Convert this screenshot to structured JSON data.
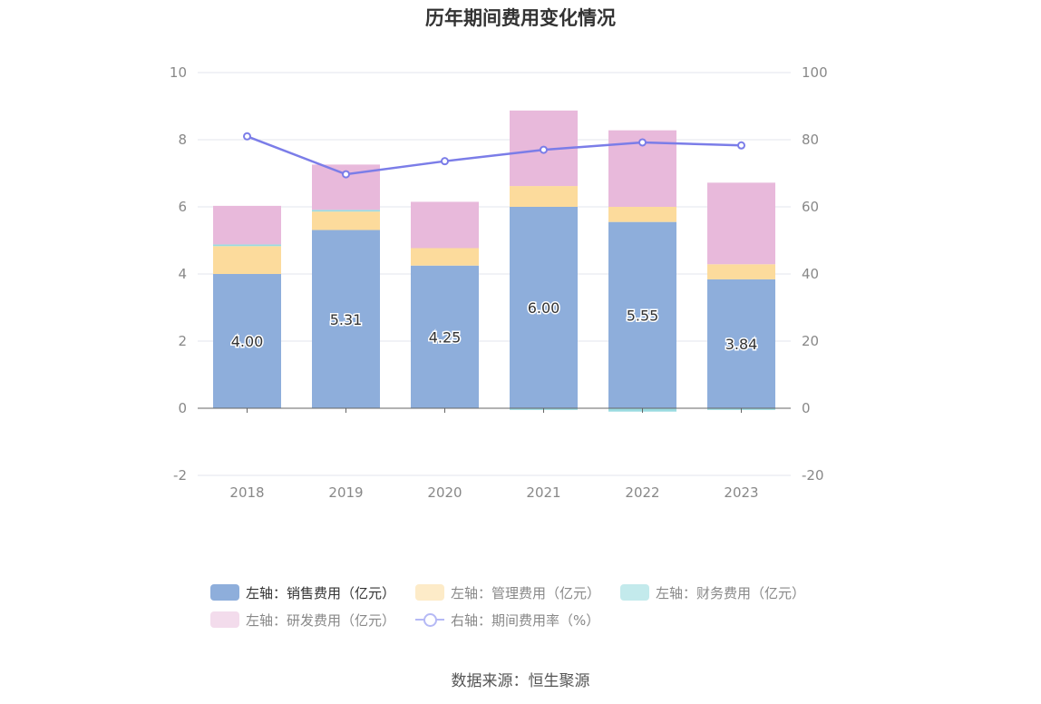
{
  "chart_data": {
    "type": "bar",
    "title": "历年期间费用变化情况",
    "categories": [
      "2018",
      "2019",
      "2020",
      "2021",
      "2022",
      "2023"
    ],
    "stacked": true,
    "left_axis": {
      "ylim": [
        -2,
        10
      ],
      "ticks": [
        "-2",
        "0",
        "2",
        "4",
        "6",
        "8",
        "10"
      ]
    },
    "right_axis": {
      "ylim": [
        -20,
        100
      ],
      "ticks": [
        "-20",
        "0",
        "20",
        "40",
        "60",
        "80",
        "100"
      ]
    },
    "grid": true,
    "series": [
      {
        "name": "左轴：销售费用（亿元）",
        "type": "bar",
        "axis": "left",
        "color": "#8eaedb",
        "values": [
          4.0,
          5.31,
          4.25,
          6.0,
          5.55,
          3.84
        ],
        "labels": [
          "4.00",
          "5.31",
          "4.25",
          "6.00",
          "5.55",
          "3.84"
        ]
      },
      {
        "name": "左轴：管理费用（亿元）",
        "type": "bar",
        "axis": "left",
        "color": "#fcdb9c",
        "values": [
          0.83,
          0.55,
          0.52,
          0.62,
          0.45,
          0.45
        ]
      },
      {
        "name": "左轴：财务费用（亿元）",
        "type": "bar",
        "axis": "left",
        "color": "#9adbe0",
        "values": [
          0.05,
          0.05,
          0.0,
          -0.05,
          -0.1,
          -0.05
        ]
      },
      {
        "name": "左轴：研发费用（亿元）",
        "type": "bar",
        "axis": "left",
        "color": "#e8b9db",
        "values": [
          1.15,
          1.35,
          1.38,
          2.25,
          2.28,
          2.43
        ]
      },
      {
        "name": "右轴：期间费用率（%）",
        "type": "line",
        "axis": "right",
        "color": "#7b7de8",
        "values": [
          81.0,
          69.7,
          73.6,
          77.0,
          79.2,
          78.3
        ]
      }
    ],
    "legend_position": "bottom",
    "source": "数据来源：恒生聚源"
  }
}
